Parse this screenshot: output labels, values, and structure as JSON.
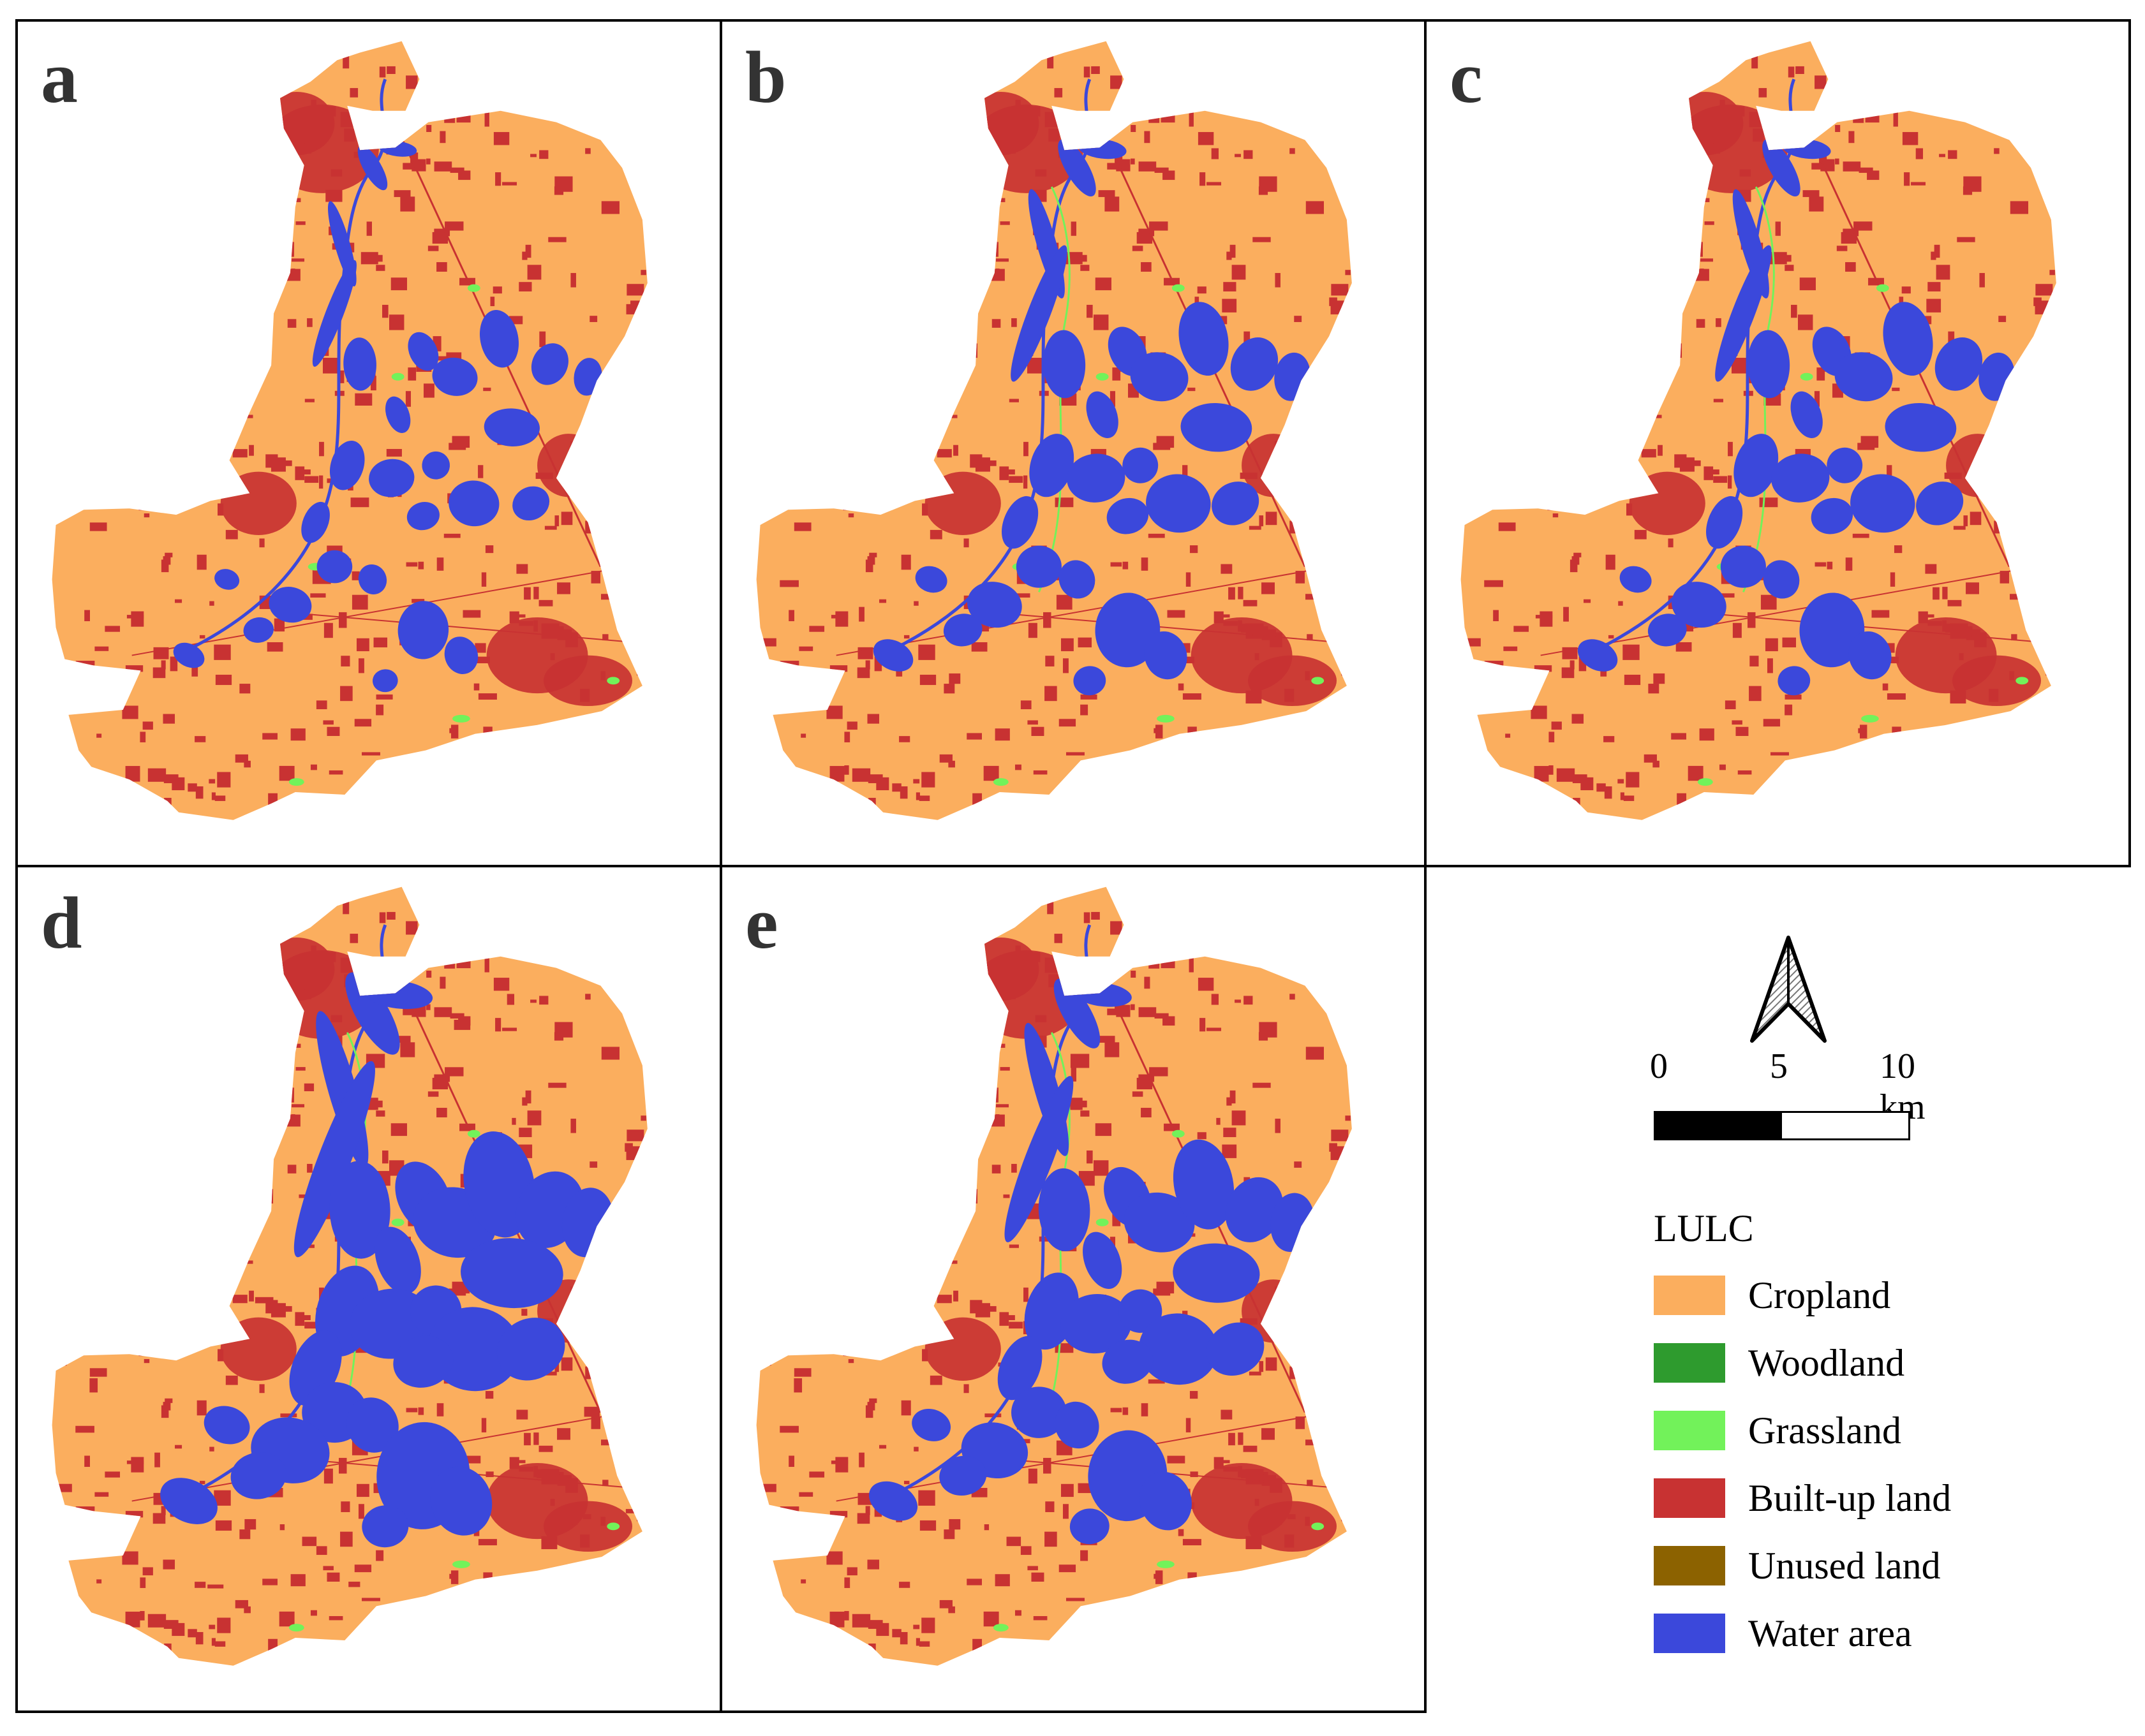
{
  "panels": [
    {
      "label": "a",
      "water_level": 0
    },
    {
      "label": "b",
      "water_level": 1
    },
    {
      "label": "c",
      "water_level": 1
    },
    {
      "label": "d",
      "water_level": 3
    },
    {
      "label": "e",
      "water_level": 2
    }
  ],
  "scale": {
    "labels": [
      "0",
      "5",
      "10 km"
    ]
  },
  "legend": {
    "title": "LULC",
    "items": [
      {
        "label": "Cropland",
        "color": "#FBAE5E"
      },
      {
        "label": "Woodland",
        "color": "#2E9B2E"
      },
      {
        "label": "Grassland",
        "color": "#72F25A"
      },
      {
        "label": "Built-up land",
        "color": "#C83232"
      },
      {
        "label": "Unused land",
        "color": "#8C6200"
      },
      {
        "label": "Water area",
        "color": "#3B48DB"
      }
    ]
  }
}
